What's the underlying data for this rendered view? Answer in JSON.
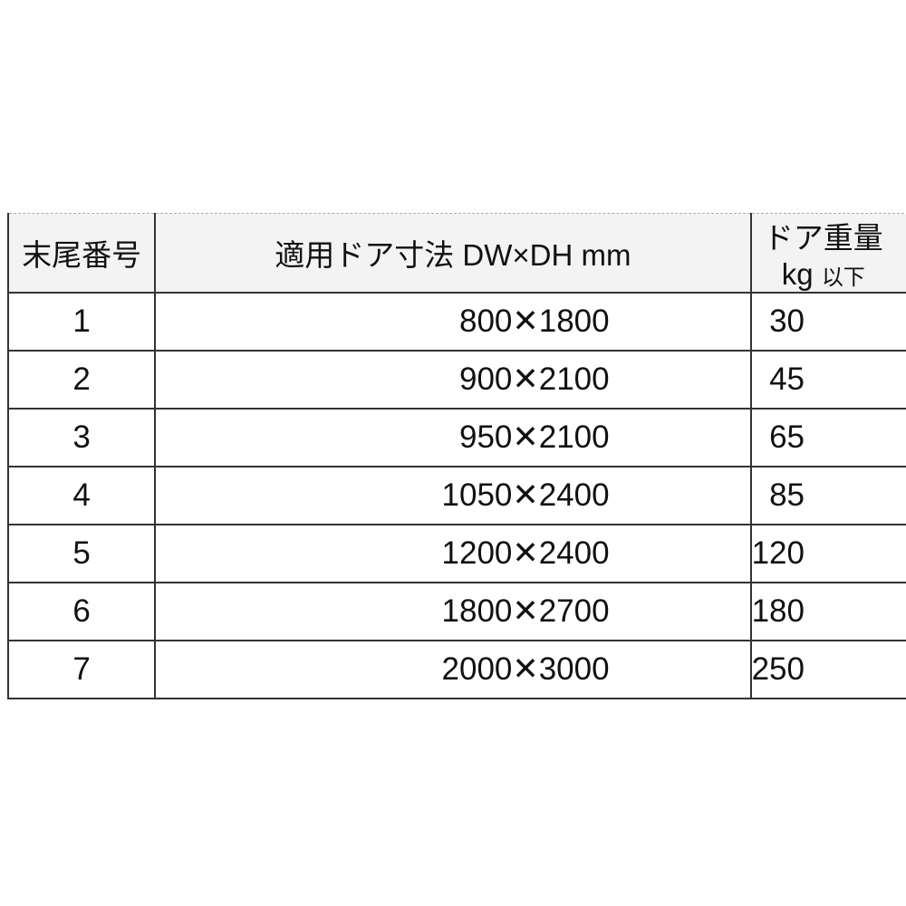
{
  "table": {
    "headers": {
      "number": "末尾番号",
      "dimensions": "適用ドア寸法 DW×DH mm",
      "weight": "ドア重量 kg",
      "weight_suffix": "以下"
    },
    "rows": [
      {
        "number": "1",
        "dimensions": "800✕1800",
        "weight": "30"
      },
      {
        "number": "2",
        "dimensions": "900✕2100",
        "weight": "45"
      },
      {
        "number": "3",
        "dimensions": "950✕2100",
        "weight": "65"
      },
      {
        "number": "4",
        "dimensions": "1050✕2400",
        "weight": "85"
      },
      {
        "number": "5",
        "dimensions": "1200✕2400",
        "weight": "120"
      },
      {
        "number": "6",
        "dimensions": "1800✕2700",
        "weight": "180"
      },
      {
        "number": "7",
        "dimensions": "2000✕3000",
        "weight": "250"
      }
    ]
  }
}
